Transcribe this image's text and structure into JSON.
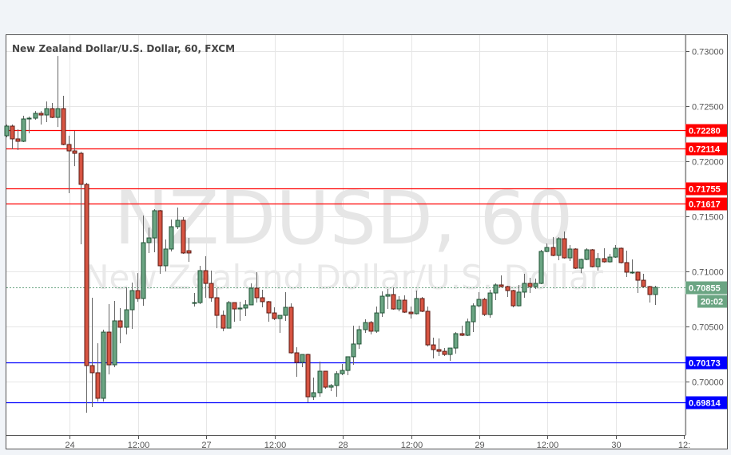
{
  "chart_data": {
    "type": "candlestick",
    "title": "New Zealand Dollar/U.S. Dollar, 60, FXCM",
    "watermark": {
      "symbol": "NZDUSD, 60",
      "name": "New Zealand Dollar/U.S. Dollar"
    },
    "ylim": [
      0.6965,
      0.7315
    ],
    "y_ticks": [
      "0.73000",
      "0.72500",
      "0.72000",
      "0.71500",
      "0.71000",
      "0.70500",
      "0.70000"
    ],
    "y_tick_values": [
      0.73,
      0.725,
      0.72,
      0.715,
      0.71,
      0.705,
      0.7
    ],
    "x_ticks": [
      "24",
      "12:00",
      "27",
      "12:00",
      "28",
      "12:00",
      "29",
      "12:00",
      "30",
      "12:"
    ],
    "x_tick_bar_index": [
      11,
      23,
      35,
      47,
      59,
      71,
      83,
      95,
      107,
      119
    ],
    "grid": true,
    "colors": {
      "up": "#6ba583",
      "down": "#d75442",
      "up_border": "#225437",
      "down_border": "#5b1a13",
      "resistance": "#ff0000",
      "support": "#0000ff",
      "last_price": "#6ba583"
    },
    "levels": [
      {
        "value": 0.7228,
        "label": "0.72280",
        "kind": "resistance"
      },
      {
        "value": 0.72114,
        "label": "0.72114",
        "kind": "resistance"
      },
      {
        "value": 0.71755,
        "label": "0.71755",
        "kind": "resistance"
      },
      {
        "value": 0.71617,
        "label": "0.71617",
        "kind": "resistance"
      },
      {
        "value": 0.70173,
        "label": "0.70173",
        "kind": "support"
      },
      {
        "value": 0.69814,
        "label": "0.69814",
        "kind": "support"
      }
    ],
    "last_price": {
      "value": 0.70855,
      "label": "0.70855",
      "countdown": "20:02"
    },
    "ohlc_columns": [
      "open",
      "high",
      "low",
      "close"
    ],
    "ohlc": [
      [
        0.72232,
        0.72333,
        0.72217,
        0.72319
      ],
      [
        0.72319,
        0.72333,
        0.72109,
        0.72203
      ],
      [
        0.72203,
        0.7229,
        0.72101,
        0.72181
      ],
      [
        0.72181,
        0.72413,
        0.72174,
        0.72384
      ],
      [
        0.72384,
        0.72406,
        0.72254,
        0.72391
      ],
      [
        0.72391,
        0.72456,
        0.72377,
        0.72435
      ],
      [
        0.72435,
        0.72456,
        0.72333,
        0.7242
      ],
      [
        0.7242,
        0.72543,
        0.72355,
        0.72478
      ],
      [
        0.72478,
        0.72529,
        0.72391,
        0.72398
      ],
      [
        0.72398,
        0.72956,
        0.72311,
        0.72478
      ],
      [
        0.72478,
        0.72594,
        0.72145,
        0.72152
      ],
      [
        0.72152,
        0.72232,
        0.7171,
        0.72094
      ],
      [
        0.72094,
        0.72275,
        0.71956,
        0.72072
      ],
      [
        0.72072,
        0.72087,
        0.71246,
        0.7179
      ],
      [
        0.7179,
        0.71804,
        0.69717,
        0.70145
      ],
      [
        0.70145,
        0.70761,
        0.69768,
        0.7008
      ],
      [
        0.7008,
        0.70348,
        0.69819,
        0.69848
      ],
      [
        0.69848,
        0.70471,
        0.69819,
        0.70449
      ],
      [
        0.70449,
        0.70703,
        0.70065,
        0.70152
      ],
      [
        0.70152,
        0.70732,
        0.7013,
        0.70551
      ],
      [
        0.70551,
        0.70667,
        0.70348,
        0.70493
      ],
      [
        0.70493,
        0.70855,
        0.70428,
        0.70652
      ],
      [
        0.70652,
        0.70899,
        0.70478,
        0.70826
      ],
      [
        0.70826,
        0.70985,
        0.70725,
        0.70754
      ],
      [
        0.70754,
        0.71507,
        0.70688,
        0.71261
      ],
      [
        0.71261,
        0.71398,
        0.71167,
        0.71304
      ],
      [
        0.71304,
        0.71565,
        0.71174,
        0.71551
      ],
      [
        0.71551,
        0.71558,
        0.70978,
        0.71051
      ],
      [
        0.71051,
        0.7129,
        0.71,
        0.71203
      ],
      [
        0.71203,
        0.71471,
        0.71181,
        0.71406
      ],
      [
        0.71406,
        0.7158,
        0.71384,
        0.71464
      ],
      [
        0.71464,
        0.71493,
        0.71159,
        0.71167
      ],
      [
        0.71188,
        0.71304,
        0.71087,
        0.71167
      ],
      [
        0.7071,
        0.70804,
        0.70681,
        0.70717
      ],
      [
        0.70717,
        0.71051,
        0.70703,
        0.71007
      ],
      [
        0.71007,
        0.71138,
        0.70761,
        0.70891
      ],
      [
        0.70891,
        0.71007,
        0.70725,
        0.70761
      ],
      [
        0.70761,
        0.70848,
        0.70485,
        0.70601
      ],
      [
        0.70601,
        0.70645,
        0.70457,
        0.70485
      ],
      [
        0.70485,
        0.70732,
        0.70485,
        0.70717
      ],
      [
        0.70717,
        0.70717,
        0.70543,
        0.70659
      ],
      [
        0.70659,
        0.70725,
        0.70551,
        0.70667
      ],
      [
        0.70667,
        0.70739,
        0.70594,
        0.70696
      ],
      [
        0.70696,
        0.70891,
        0.70696,
        0.70848
      ],
      [
        0.70848,
        0.70993,
        0.70717,
        0.70761
      ],
      [
        0.70761,
        0.70833,
        0.70674,
        0.70725
      ],
      [
        0.70725,
        0.70732,
        0.70543,
        0.70623
      ],
      [
        0.70623,
        0.70674,
        0.70558,
        0.70572
      ],
      [
        0.70572,
        0.70601,
        0.70442,
        0.70601
      ],
      [
        0.70601,
        0.70812,
        0.70551,
        0.70674
      ],
      [
        0.70674,
        0.7071,
        0.70254,
        0.70261
      ],
      [
        0.70261,
        0.70312,
        0.70043,
        0.70174
      ],
      [
        0.70174,
        0.70246,
        0.7013,
        0.70246
      ],
      [
        0.70246,
        0.70254,
        0.69812,
        0.69862
      ],
      [
        0.69862,
        0.70036,
        0.69833,
        0.69899
      ],
      [
        0.69899,
        0.70181,
        0.69862,
        0.70094
      ],
      [
        0.70094,
        0.70094,
        0.69935,
        0.69949
      ],
      [
        0.69949,
        0.69978,
        0.69913,
        0.69964
      ],
      [
        0.69964,
        0.70094,
        0.69862,
        0.70072
      ],
      [
        0.70072,
        0.70159,
        0.70058,
        0.70101
      ],
      [
        0.70101,
        0.70225,
        0.70058,
        0.70225
      ],
      [
        0.70225,
        0.70507,
        0.70152,
        0.70341
      ],
      [
        0.70341,
        0.70507,
        0.70297,
        0.70471
      ],
      [
        0.70471,
        0.70565,
        0.70442,
        0.70536
      ],
      [
        0.70536,
        0.70551,
        0.70428,
        0.70457
      ],
      [
        0.70457,
        0.70681,
        0.70442,
        0.70623
      ],
      [
        0.70623,
        0.70819,
        0.70587,
        0.70775
      ],
      [
        0.70775,
        0.70841,
        0.70659,
        0.7079
      ],
      [
        0.7079,
        0.70855,
        0.70652,
        0.70659
      ],
      [
        0.70659,
        0.70775,
        0.70638,
        0.70739
      ],
      [
        0.70739,
        0.70783,
        0.70623,
        0.7063
      ],
      [
        0.7063,
        0.70681,
        0.70572,
        0.70616
      ],
      [
        0.70616,
        0.70826,
        0.70609,
        0.70754
      ],
      [
        0.70754,
        0.70768,
        0.7063,
        0.70638
      ],
      [
        0.70638,
        0.70681,
        0.70319,
        0.70333
      ],
      [
        0.70333,
        0.70399,
        0.7021,
        0.7029
      ],
      [
        0.7029,
        0.70391,
        0.70232,
        0.70275
      ],
      [
        0.70275,
        0.70304,
        0.70232,
        0.70246
      ],
      [
        0.70246,
        0.70304,
        0.70188,
        0.70304
      ],
      [
        0.70304,
        0.70449,
        0.70254,
        0.70435
      ],
      [
        0.70435,
        0.70507,
        0.70413,
        0.7042
      ],
      [
        0.7042,
        0.70572,
        0.70413,
        0.70543
      ],
      [
        0.70543,
        0.7071,
        0.70449,
        0.70688
      ],
      [
        0.70688,
        0.70812,
        0.70674,
        0.70746
      ],
      [
        0.70746,
        0.70761,
        0.70594,
        0.70609
      ],
      [
        0.70609,
        0.70833,
        0.7058,
        0.70804
      ],
      [
        0.70804,
        0.70891,
        0.70739,
        0.70877
      ],
      [
        0.70877,
        0.70964,
        0.70855,
        0.70862
      ],
      [
        0.70862,
        0.7087,
        0.70768,
        0.70826
      ],
      [
        0.70826,
        0.70833,
        0.70674,
        0.70688
      ],
      [
        0.70688,
        0.70877,
        0.70681,
        0.70812
      ],
      [
        0.70812,
        0.70978,
        0.70761,
        0.70891
      ],
      [
        0.70891,
        0.70942,
        0.70804,
        0.70862
      ],
      [
        0.70862,
        0.70935,
        0.70841,
        0.70891
      ],
      [
        0.70891,
        0.71196,
        0.70884,
        0.71181
      ],
      [
        0.71181,
        0.71254,
        0.71174,
        0.71217
      ],
      [
        0.71217,
        0.71312,
        0.71138,
        0.71145
      ],
      [
        0.71145,
        0.71312,
        0.71101,
        0.71297
      ],
      [
        0.71297,
        0.71362,
        0.71116,
        0.71123
      ],
      [
        0.71123,
        0.71239,
        0.71094,
        0.71203
      ],
      [
        0.71203,
        0.7121,
        0.71022,
        0.71029
      ],
      [
        0.71029,
        0.71116,
        0.70985,
        0.71109
      ],
      [
        0.71109,
        0.7121,
        0.71101,
        0.71196
      ],
      [
        0.71196,
        0.71203,
        0.71036,
        0.71043
      ],
      [
        0.71043,
        0.71167,
        0.71007,
        0.71116
      ],
      [
        0.71116,
        0.7121,
        0.7108,
        0.71087
      ],
      [
        0.71087,
        0.71159,
        0.7108,
        0.7113
      ],
      [
        0.7113,
        0.71239,
        0.71123,
        0.7121
      ],
      [
        0.7121,
        0.71217,
        0.71072,
        0.7108
      ],
      [
        0.7108,
        0.71188,
        0.70949,
        0.70993
      ],
      [
        0.70993,
        0.71109,
        0.70978,
        0.70993
      ],
      [
        0.70993,
        0.71,
        0.70804,
        0.7092
      ],
      [
        0.7092,
        0.70978,
        0.70855,
        0.70862
      ],
      [
        0.70862,
        0.7087,
        0.70717,
        0.7079
      ],
      [
        0.7079,
        0.7087,
        0.70696,
        0.70855
      ]
    ]
  }
}
